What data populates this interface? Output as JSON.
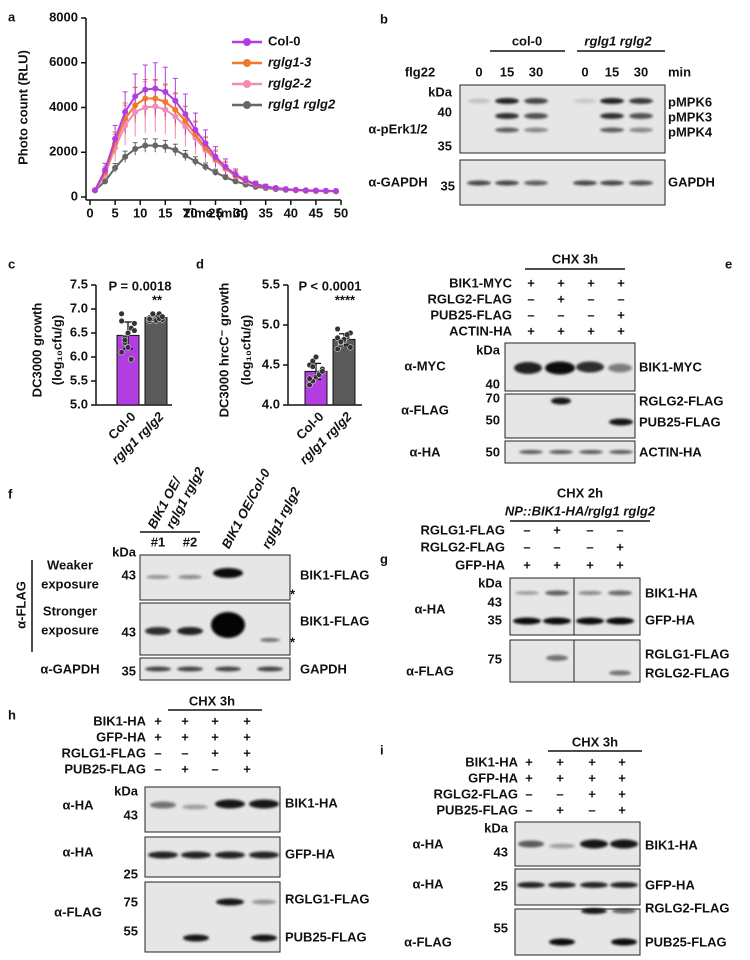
{
  "chart_data": [
    {
      "letter": "a",
      "type": "line",
      "xlabel": "Time (min)",
      "ylabel": "Photo count (RLU)",
      "x": [
        1,
        3,
        5,
        7,
        9,
        11,
        13,
        15,
        17,
        19,
        21,
        23,
        25,
        27,
        29,
        31,
        33,
        35,
        37,
        39,
        41,
        43,
        45,
        47,
        49
      ],
      "xlim": [
        0,
        50
      ],
      "xticks": [
        0,
        5,
        10,
        15,
        20,
        25,
        30,
        35,
        40,
        45,
        50
      ],
      "ylim": [
        0,
        8000
      ],
      "yticks": [
        0,
        2000,
        4000,
        6000,
        8000
      ],
      "series": [
        {
          "name": "Col-0",
          "color": "#b23de0",
          "values": [
            300,
            1200,
            2600,
            3800,
            4500,
            4800,
            4850,
            4700,
            4300,
            3700,
            3000,
            2400,
            1800,
            1350,
            1000,
            750,
            580,
            470,
            400,
            350,
            320,
            300,
            290,
            280,
            270
          ],
          "errors": [
            50,
            300,
            600,
            900,
            1000,
            1100,
            1150,
            1100,
            1000,
            900,
            750,
            600,
            450,
            350,
            250,
            180,
            130,
            100,
            80,
            60,
            50,
            40,
            40,
            30,
            30
          ]
        },
        {
          "name": "rglg1-3",
          "color": "#f07a2a",
          "values": [
            300,
            1100,
            2400,
            3500,
            4100,
            4400,
            4400,
            4250,
            3900,
            3400,
            2800,
            2200,
            1700,
            1300,
            950,
            720,
            560,
            460,
            390,
            340,
            310,
            290,
            280,
            270,
            260
          ],
          "errors": [
            50,
            250,
            500,
            700,
            800,
            850,
            850,
            800,
            750,
            650,
            550,
            450,
            350,
            250,
            200,
            150,
            110,
            90,
            70,
            60,
            50,
            40,
            35,
            30,
            30
          ]
        },
        {
          "name": "rglg2-2",
          "color": "#f28cb5",
          "values": [
            300,
            1000,
            2200,
            3200,
            3800,
            4000,
            4050,
            3900,
            3600,
            3150,
            2650,
            2100,
            1650,
            1250,
            930,
            700,
            550,
            450,
            380,
            340,
            310,
            290,
            280,
            270,
            260
          ],
          "errors": [
            50,
            250,
            600,
            900,
            1100,
            1150,
            1150,
            1100,
            1000,
            900,
            750,
            600,
            450,
            350,
            250,
            180,
            130,
            100,
            80,
            60,
            50,
            40,
            35,
            30,
            30
          ]
        },
        {
          "name": "rglg1 rglg2",
          "color": "#666666",
          "values": [
            300,
            700,
            1300,
            1800,
            2150,
            2300,
            2300,
            2250,
            2100,
            1850,
            1600,
            1350,
            1100,
            880,
            700,
            560,
            460,
            400,
            350,
            320,
            300,
            280,
            270,
            260,
            250
          ],
          "errors": [
            40,
            100,
            200,
            250,
            280,
            300,
            300,
            280,
            260,
            230,
            200,
            170,
            140,
            110,
            90,
            70,
            60,
            50,
            40,
            35,
            30,
            30,
            25,
            25,
            25
          ]
        }
      ]
    },
    {
      "letter": "c",
      "type": "bar",
      "ylabel": [
        "DC3000 growth",
        "(log₁₀cfu/g)"
      ],
      "categories": [
        "Col-0",
        "rglg1 rglg2"
      ],
      "values": [
        6.45,
        6.82
      ],
      "errors": [
        0.28,
        0.06
      ],
      "points": [
        [
          6.1,
          6.3,
          6.5,
          6.6,
          6.7,
          6.9,
          6.4,
          6.2,
          5.95,
          6.55,
          6.75,
          6.35
        ],
        [
          6.75,
          6.8,
          6.85,
          6.9,
          6.78,
          6.82,
          6.88,
          6.76,
          6.8,
          6.84,
          6.79,
          6.9
        ]
      ],
      "colors": [
        "#b23de0",
        "#5a5a5a"
      ],
      "ylim": [
        5,
        7.5
      ],
      "yticks": [
        {
          "value": 5,
          "label": "5.0"
        },
        5.5,
        {
          "value": 6,
          "label": "6.0"
        },
        6.5,
        {
          "value": 7,
          "label": "7.0"
        },
        7.5
      ],
      "annotation": "P = 0.0018",
      "significance": "**"
    },
    {
      "letter": "d",
      "type": "bar",
      "ylabel": [
        "DC3000 hrcC⁻ growth",
        "(log₁₀cfu/g)"
      ],
      "categories": [
        "Col-0",
        "rglg1 rglg2"
      ],
      "values": [
        4.42,
        4.82
      ],
      "errors": [
        0.1,
        0.07
      ],
      "points": [
        [
          4.25,
          4.3,
          4.35,
          4.4,
          4.45,
          4.5,
          4.55,
          4.6,
          4.38,
          4.42,
          4.33,
          4.48
        ],
        [
          4.7,
          4.75,
          4.8,
          4.85,
          4.9,
          4.95,
          4.78,
          4.82,
          4.88,
          4.72,
          4.84,
          4.79
        ]
      ],
      "colors": [
        "#b23de0",
        "#5a5a5a"
      ],
      "ylim": [
        4,
        5.5
      ],
      "yticks": [
        {
          "value": 4,
          "label": "4.0"
        },
        4.5,
        {
          "value": 5,
          "label": "5.0"
        },
        5.5
      ],
      "annotation": "P < 0.0001",
      "significance": "****"
    }
  ],
  "blots": [
    {
      "letter": "b",
      "groups": [
        "col-0",
        "rglg1 rglg2"
      ],
      "treatment": "flg22",
      "lanes": [
        0,
        15,
        30,
        0,
        15,
        30
      ],
      "unit": "min",
      "strips": [
        {
          "antibody": "α-pErk1/2",
          "markers": [
            "kDa",
            40,
            35
          ],
          "targets": [
            "pMPK6",
            "pMPK3",
            "pMPK4"
          ]
        },
        {
          "antibody": "α-GAPDH",
          "markers": [
            35
          ],
          "targets": [
            "GAPDH"
          ]
        }
      ]
    },
    {
      "letter": "e",
      "header": [
        "CHX 3h"
      ],
      "conditions": [
        {
          "label": "BIK1-MYC",
          "signs": [
            "+",
            "+",
            "+",
            "+"
          ]
        },
        {
          "label": "RGLG2-FLAG",
          "signs": [
            "–",
            "+",
            "–",
            "–"
          ]
        },
        {
          "label": "PUB25-FLAG",
          "signs": [
            "–",
            "–",
            "–",
            "+"
          ]
        },
        {
          "label": "ACTIN-HA",
          "signs": [
            "+",
            "+",
            "+",
            "+"
          ]
        }
      ],
      "strips": [
        {
          "antibody": "α-MYC",
          "markers": [
            "kDa",
            40
          ],
          "targets": [
            "BIK1-MYC"
          ]
        },
        {
          "antibody": "α-FLAG",
          "markers": [
            70,
            50
          ],
          "targets": [
            "RGLG2-FLAG",
            "PUB25-FLAG"
          ]
        },
        {
          "antibody": "α-HA",
          "markers": [
            50
          ],
          "targets": [
            "ACTIN-HA"
          ]
        }
      ]
    },
    {
      "letter": "f",
      "replicate_group": [
        "BIK1 OE/",
        "rglg1 rglg2"
      ],
      "replicates": [
        "#1",
        "#2"
      ],
      "columns": [
        "BIK1 OE/Col-0",
        "rglg1 rglg2"
      ],
      "antibody": "α-FLAG",
      "strips": [
        {
          "exposure": [
            "Weaker",
            "exposure"
          ],
          "markers": [
            "kDa",
            43
          ],
          "targets": [
            "BIK1-FLAG",
            "*"
          ]
        },
        {
          "exposure": [
            "Stronger",
            "exposure"
          ],
          "markers": [
            43
          ],
          "targets": [
            "BIK1-FLAG",
            "*"
          ]
        },
        {
          "antibody": "α-GAPDH",
          "markers": [
            35
          ],
          "targets": [
            "GAPDH"
          ]
        }
      ]
    },
    {
      "letter": "g",
      "header": [
        "CHX 2h",
        "NP::BIK1-HA/rglg1 rglg2"
      ],
      "conditions": [
        {
          "label": "RGLG1-FLAG",
          "signs": [
            "–",
            "+",
            "–",
            "–"
          ]
        },
        {
          "label": "RGLG2-FLAG",
          "signs": [
            "–",
            "–",
            "–",
            "+"
          ]
        },
        {
          "label": "GFP-HA",
          "signs": [
            "+",
            "+",
            "+",
            "+"
          ]
        }
      ],
      "strips": [
        {
          "antibody": "α-HA",
          "markers": [
            "kDa",
            43,
            35
          ],
          "targets": [
            "BIK1-HA",
            "GFP-HA"
          ]
        },
        {
          "antibody": "α-FLAG",
          "markers": [
            75
          ],
          "targets": [
            "RGLG1-FLAG",
            "RGLG2-FLAG"
          ]
        }
      ]
    },
    {
      "letter": "h",
      "header": [
        "CHX 3h"
      ],
      "conditions": [
        {
          "label": "BIK1-HA",
          "signs": [
            "+",
            "+",
            "+",
            "+"
          ]
        },
        {
          "label": "GFP-HA",
          "signs": [
            "+",
            "+",
            "+",
            "+"
          ]
        },
        {
          "label": "RGLG1-FLAG",
          "signs": [
            "–",
            "–",
            "+",
            "+"
          ]
        },
        {
          "label": "PUB25-FLAG",
          "signs": [
            "–",
            "+",
            "–",
            "+"
          ]
        }
      ],
      "strips": [
        {
          "antibody": "α-HA",
          "markers": [
            "kDa",
            43
          ],
          "targets": [
            "BIK1-HA"
          ]
        },
        {
          "antibody": "α-HA",
          "markers": [
            25
          ],
          "targets": [
            "GFP-HA"
          ]
        },
        {
          "antibody": "α-FLAG",
          "markers": [
            75,
            55
          ],
          "targets": [
            "RGLG1-FLAG",
            "PUB25-FLAG"
          ]
        }
      ]
    },
    {
      "letter": "i",
      "header": [
        "CHX 3h"
      ],
      "conditions": [
        {
          "label": "BIK1-HA",
          "signs": [
            "+",
            "+",
            "+",
            "+"
          ]
        },
        {
          "label": "GFP-HA",
          "signs": [
            "+",
            "+",
            "+",
            "+"
          ]
        },
        {
          "label": "RGLG2-FLAG",
          "signs": [
            "–",
            "–",
            "+",
            "+"
          ]
        },
        {
          "label": "PUB25-FLAG",
          "signs": [
            "–",
            "+",
            "–",
            "+"
          ]
        }
      ],
      "strips": [
        {
          "antibody": "α-HA",
          "markers": [
            "kDa",
            43
          ],
          "targets": [
            "BIK1-HA"
          ]
        },
        {
          "antibody": "α-HA",
          "markers": [
            25
          ],
          "targets": [
            "GFP-HA"
          ]
        },
        {
          "antibody": "α-FLAG",
          "markers": [
            55
          ],
          "targets": [
            "RGLG2-FLAG",
            "PUB25-FLAG"
          ]
        }
      ]
    }
  ]
}
